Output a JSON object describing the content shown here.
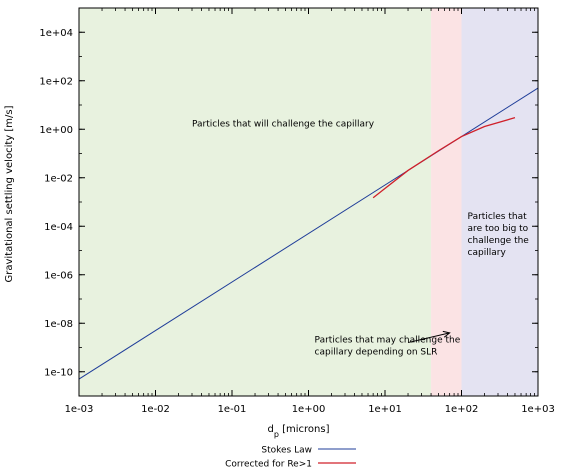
{
  "chart_data": {
    "type": "line",
    "xscale": "log",
    "yscale": "log",
    "xlim": [
      0.001,
      1000
    ],
    "ylim": [
      1e-11,
      100000.0
    ],
    "xlabel_main": "d",
    "xlabel_sub": "p",
    "xlabel_rest": " [microns]",
    "ylabel": "Gravitational settling velocity [m/s]",
    "xticks": [
      {
        "value": 0.001,
        "label": "1e-03"
      },
      {
        "value": 0.01,
        "label": "1e-02"
      },
      {
        "value": 0.1,
        "label": "1e-01"
      },
      {
        "value": 1,
        "label": "1e+00"
      },
      {
        "value": 10,
        "label": "1e+01"
      },
      {
        "value": 100,
        "label": "1e+02"
      },
      {
        "value": 1000,
        "label": "1e+03"
      }
    ],
    "yticks": [
      {
        "value": 1e-10,
        "label": "1e-10"
      },
      {
        "value": 1e-08,
        "label": "1e-08"
      },
      {
        "value": 1e-06,
        "label": "1e-06"
      },
      {
        "value": 0.0001,
        "label": "1e-04"
      },
      {
        "value": 0.01,
        "label": "1e-02"
      },
      {
        "value": 1,
        "label": "1e+00"
      },
      {
        "value": 100,
        "label": "1e+02"
      },
      {
        "value": 10000,
        "label": "1e+04"
      }
    ],
    "regions": [
      {
        "x_from": 0.001,
        "x_to": 40,
        "color": "#e8f2df"
      },
      {
        "x_from": 40,
        "x_to": 100,
        "color": "#fbe3e4"
      },
      {
        "x_from": 100,
        "x_to": 1000,
        "color": "#e4e3f2"
      }
    ],
    "series": [
      {
        "name": "Stokes Law",
        "color": "#1f3d99",
        "x": [
          0.001,
          1000
        ],
        "y": [
          5e-11,
          50
        ]
      },
      {
        "name": "Corrected for Re>1",
        "color": "#d0202a",
        "x": [
          7,
          20,
          50,
          100,
          200,
          500
        ],
        "y": [
          0.0015,
          0.02,
          0.13,
          0.5,
          1.3,
          3.0
        ]
      }
    ],
    "annotations": [
      {
        "lines": [
          "Particles that will challenge the capillary"
        ],
        "x": 0.03,
        "y": 1.3,
        "anchor": "start"
      },
      {
        "lines": [
          "Particles that may challenge the",
          "capillary depending on SLR"
        ],
        "x": 1.2,
        "y": 1.6e-09,
        "anchor": "start"
      },
      {
        "lines": [
          "Particles that",
          "are too big to",
          "challenge the",
          "capillary"
        ],
        "x": 120,
        "y": 0.0002,
        "anchor": "start"
      }
    ],
    "arrow": {
      "from": {
        "x": 20,
        "y": 1.6e-09
      },
      "to": {
        "x": 70,
        "y": 4e-09
      }
    },
    "legend_position": "bottom-center",
    "grid": false
  }
}
